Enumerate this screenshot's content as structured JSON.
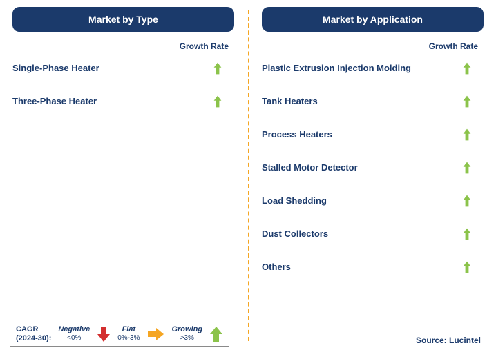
{
  "colors": {
    "header_bg": "#1b3a6b",
    "header_text": "#ffffff",
    "text": "#1b3a6b",
    "divider": "#f5a623",
    "arrow_up": "#8bc34a",
    "arrow_down": "#d32f2f",
    "arrow_flat": "#f5a623",
    "legend_border": "#8a8a8a",
    "background": "#ffffff"
  },
  "typography": {
    "header_fontsize": 14,
    "growth_label_fontsize": 12,
    "item_fontsize": 13,
    "legend_fontsize": 11,
    "source_fontsize": 12,
    "font_family": "Arial"
  },
  "left": {
    "title": "Market by Type",
    "growth_label": "Growth Rate",
    "items": [
      {
        "label": "Single-Phase Heater",
        "trend": "up"
      },
      {
        "label": "Three-Phase Heater",
        "trend": "up"
      }
    ]
  },
  "right": {
    "title": "Market by Application",
    "growth_label": "Growth Rate",
    "items": [
      {
        "label": "Plastic Extrusion Injection Molding",
        "trend": "up"
      },
      {
        "label": "Tank Heaters",
        "trend": "up"
      },
      {
        "label": "Process Heaters",
        "trend": "up"
      },
      {
        "label": "Stalled Motor Detector",
        "trend": "up"
      },
      {
        "label": "Load Shedding",
        "trend": "up"
      },
      {
        "label": "Dust Collectors",
        "trend": "up"
      },
      {
        "label": "Others",
        "trend": "up"
      }
    ]
  },
  "legend": {
    "title_line1": "CAGR",
    "title_line2": "(2024-30):",
    "negative": {
      "label": "Negative",
      "sub": "<0%"
    },
    "flat": {
      "label": "Flat",
      "sub": "0%-3%"
    },
    "growing": {
      "label": "Growing",
      "sub": ">3%"
    }
  },
  "source": "Source: Lucintel"
}
